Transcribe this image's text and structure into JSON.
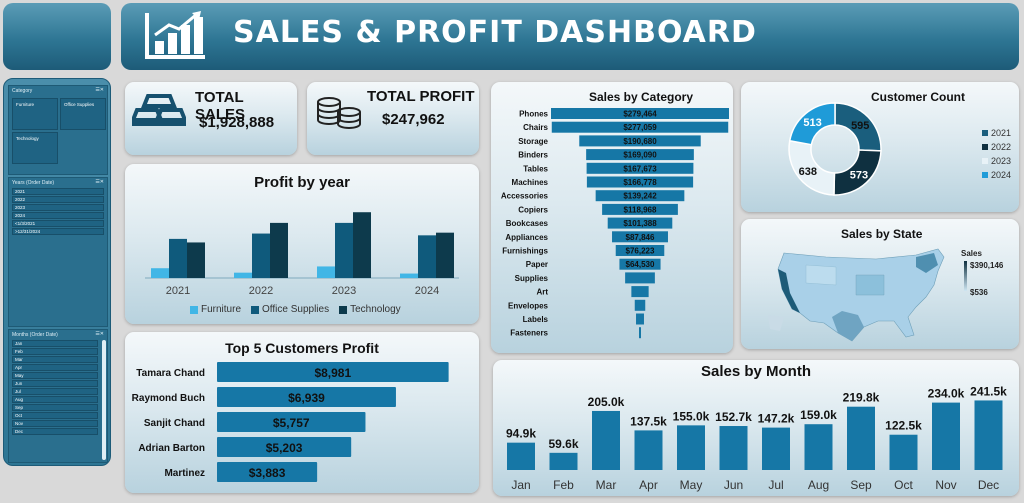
{
  "header": {
    "title": "SALES & PROFIT DASHBOARD"
  },
  "colors": {
    "furniture": "#41b6e6",
    "office": "#0f5a7c",
    "technology": "#0d3a4c",
    "bar": "#1677a6",
    "y2021": "#1a5e7d",
    "y2022": "#0f3040",
    "y2023": "#e8f2f7",
    "y2024": "#1f9bd8"
  },
  "slicers": {
    "category": {
      "title": "Category",
      "items": [
        "Furniture",
        "Office Supplies",
        "Technology"
      ]
    },
    "years": {
      "title": "Years (Order Date)",
      "items": [
        "2021",
        "2022",
        "2023",
        "2024",
        "<1/3/2021",
        ">12/31/2024"
      ]
    },
    "months": {
      "title": "Months (Order Date)",
      "items": [
        "Jan",
        "Feb",
        "Mar",
        "Apr",
        "May",
        "Jun",
        "Jul",
        "Aug",
        "Sep",
        "Oct",
        "Nov",
        "Dec"
      ]
    }
  },
  "kpis": {
    "sales": {
      "label": "TOTAL SALES",
      "value": "$1,928,888"
    },
    "profit": {
      "label": "TOTAL PROFIT",
      "value": "$247,962"
    }
  },
  "chart_data": [
    {
      "id": "profit_by_year",
      "type": "bar",
      "title": "Profit by year",
      "categories": [
        "2021",
        "2022",
        "2023",
        "2024"
      ],
      "series": [
        {
          "name": "Furniture",
          "values": [
            5500,
            3000,
            6500,
            2500
          ]
        },
        {
          "name": "Office Supplies",
          "values": [
            22000,
            25000,
            31000,
            24000
          ]
        },
        {
          "name": "Technology",
          "values": [
            20000,
            31000,
            37000,
            25500
          ]
        }
      ],
      "ylim": [
        0,
        45000
      ]
    },
    {
      "id": "top_customers",
      "type": "bar",
      "title": "Top 5 Customers Profit",
      "categories": [
        "Tamara Chand",
        "Raymond Buch",
        "Sanjit Chand",
        "Adrian Barton",
        "Martinez"
      ],
      "values": [
        8981,
        6939,
        5757,
        5203,
        3883
      ],
      "labels": [
        "$8,981",
        "$6,939",
        "$5,757",
        "$5,203",
        "$3,883"
      ]
    },
    {
      "id": "sales_by_category",
      "type": "bar",
      "title": "Sales by Category",
      "categories": [
        "Phones",
        "Chairs",
        "Storage",
        "Binders",
        "Tables",
        "Machines",
        "Accessories",
        "Copiers",
        "Bookcases",
        "Appliances",
        "Furnishings",
        "Paper",
        "Supplies",
        "Art",
        "Envelopes",
        "Labels",
        "Fasteners"
      ],
      "values": [
        279464,
        277059,
        190680,
        169090,
        167673,
        166778,
        139242,
        118968,
        101388,
        87846,
        76223,
        64530,
        46674,
        27119,
        16476,
        12486,
        3024
      ],
      "labels": [
        "$279,464",
        "$277,059",
        "$190,680",
        "$169,090",
        "$167,673",
        "$166,778",
        "$139,242",
        "$118,968",
        "$101,388",
        "$87,846",
        "$76,223",
        "$64,530",
        "",
        "",
        "",
        "",
        ""
      ]
    },
    {
      "id": "customer_count",
      "type": "pie",
      "title": "Customer  Count",
      "categories": [
        "2021",
        "2022",
        "2023",
        "2024"
      ],
      "values": [
        595,
        573,
        638,
        513
      ]
    },
    {
      "id": "sales_by_month",
      "type": "bar",
      "title": "Sales by Month",
      "categories": [
        "Jan",
        "Feb",
        "Mar",
        "Apr",
        "May",
        "Jun",
        "Jul",
        "Aug",
        "Sep",
        "Oct",
        "Nov",
        "Dec"
      ],
      "values": [
        94.9,
        59.6,
        205.0,
        137.5,
        155.0,
        152.7,
        147.2,
        159.0,
        219.8,
        122.5,
        234.0,
        241.5
      ],
      "labels": [
        "94.9k",
        "59.6k",
        "205.0k",
        "137.5k",
        "155.0k",
        "152.7k",
        "147.2k",
        "159.0k",
        "219.8k",
        "122.5k",
        "234.0k",
        "241.5k"
      ]
    }
  ],
  "map": {
    "title": "Sales by State",
    "legend_title": "Sales",
    "max_label": "$390,146",
    "min_label": "$536"
  }
}
